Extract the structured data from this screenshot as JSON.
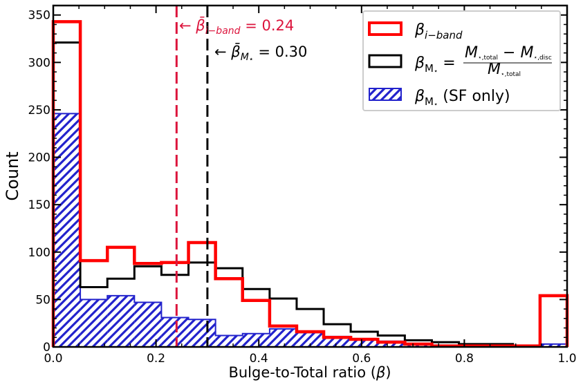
{
  "chart_data": {
    "type": "histogram",
    "xlabel": "Bulge-to-Total ratio (β)",
    "ylabel": "Count",
    "xlim": [
      0,
      1
    ],
    "ylim": [
      0,
      360
    ],
    "xticks": [
      0.0,
      0.2,
      0.4,
      0.6,
      0.8,
      1.0
    ],
    "xtick_labels": [
      "0.0",
      "0.2",
      "0.4",
      "0.6",
      "0.8",
      "1.0"
    ],
    "yticks": [
      0,
      50,
      100,
      150,
      200,
      250,
      300,
      350
    ],
    "ytick_labels": [
      "0",
      "50",
      "100",
      "150",
      "200",
      "250",
      "300",
      "350"
    ],
    "grid": false,
    "legend_position": "top-right",
    "bin_edges": [
      0.0,
      0.0526,
      0.1053,
      0.1579,
      0.2105,
      0.2632,
      0.3158,
      0.3684,
      0.4211,
      0.4737,
      0.5263,
      0.5789,
      0.6316,
      0.6842,
      0.7368,
      0.7895,
      0.8421,
      0.8947,
      0.9474,
      1.0
    ],
    "series": [
      {
        "name": "β_{i-band}",
        "style": "step",
        "color": "#ff0000",
        "values": [
          343,
          91,
          105,
          88,
          89,
          110,
          72,
          49,
          22,
          16,
          10,
          8,
          5,
          3,
          1,
          1,
          1,
          1,
          54
        ]
      },
      {
        "name": "β_M⋆",
        "style": "step",
        "color": "#000000",
        "values": [
          321,
          63,
          72,
          85,
          76,
          89,
          83,
          61,
          51,
          40,
          24,
          16,
          12,
          7,
          5,
          3,
          3,
          1,
          54
        ]
      },
      {
        "name": "β_M⋆ (SF only)",
        "style": "hatched",
        "color": "#2222cc",
        "values": [
          246,
          50,
          54,
          47,
          31,
          29,
          12,
          14,
          19,
          15,
          11,
          8,
          6,
          3,
          1,
          1,
          1,
          1,
          3
        ]
      }
    ],
    "vlines": [
      {
        "x": 0.24,
        "color": "#dc143c",
        "label": "← β̄_{i-band} = 0.24"
      },
      {
        "x": 0.3,
        "color": "#000000",
        "label": "← β̄_M⋆ = 0.30"
      }
    ]
  }
}
